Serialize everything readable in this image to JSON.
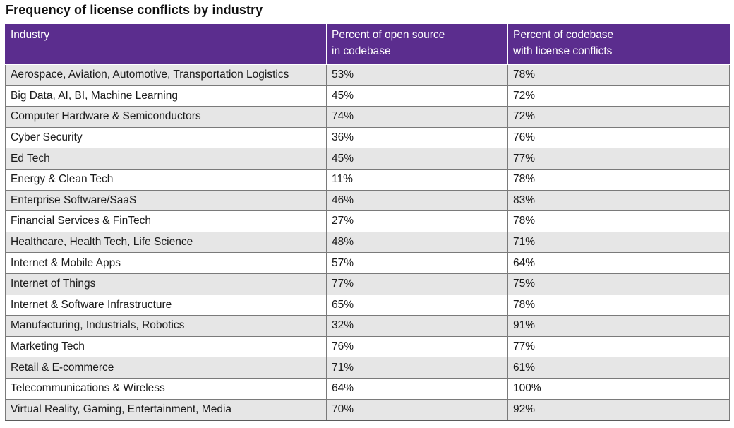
{
  "chart_data": {
    "type": "table",
    "title": "Frequency of license conflicts by industry",
    "columns": [
      {
        "lines": [
          "Industry"
        ]
      },
      {
        "lines": [
          "Percent of open source",
          "in codebase"
        ]
      },
      {
        "lines": [
          "Percent of codebase",
          "with license conflicts"
        ]
      }
    ],
    "rows": [
      [
        "Aerospace, Aviation, Automotive, Transportation Logistics",
        "53%",
        "78%"
      ],
      [
        "Big Data, AI, BI, Machine Learning",
        "45%",
        "72%"
      ],
      [
        "Computer Hardware & Semiconductors",
        "74%",
        "72%"
      ],
      [
        "Cyber Security",
        "36%",
        "76%"
      ],
      [
        "Ed Tech",
        "45%",
        "77%"
      ],
      [
        "Energy & Clean Tech",
        "11%",
        "78%"
      ],
      [
        "Enterprise Software/SaaS",
        "46%",
        "83%"
      ],
      [
        "Financial Services & FinTech",
        "27%",
        "78%"
      ],
      [
        "Healthcare, Health Tech, Life Science",
        "48%",
        "71%"
      ],
      [
        "Internet & Mobile Apps",
        "57%",
        "64%"
      ],
      [
        "Internet of Things",
        "77%",
        "75%"
      ],
      [
        "Internet & Software Infrastructure",
        "65%",
        "78%"
      ],
      [
        "Manufacturing, Industrials, Robotics",
        "32%",
        "91%"
      ],
      [
        "Marketing Tech",
        "76%",
        "77%"
      ],
      [
        "Retail & E-commerce",
        "71%",
        "61%"
      ],
      [
        "Telecommunications & Wireless",
        "64%",
        "100%"
      ],
      [
        "Virtual Reality, Gaming, Entertainment, Media",
        "70%",
        "92%"
      ]
    ],
    "colors": {
      "header_background": "#5b2d8e",
      "header_text": "#ffffff",
      "row_alt_background": "#e6e6e6",
      "row_background": "#ffffff"
    }
  }
}
